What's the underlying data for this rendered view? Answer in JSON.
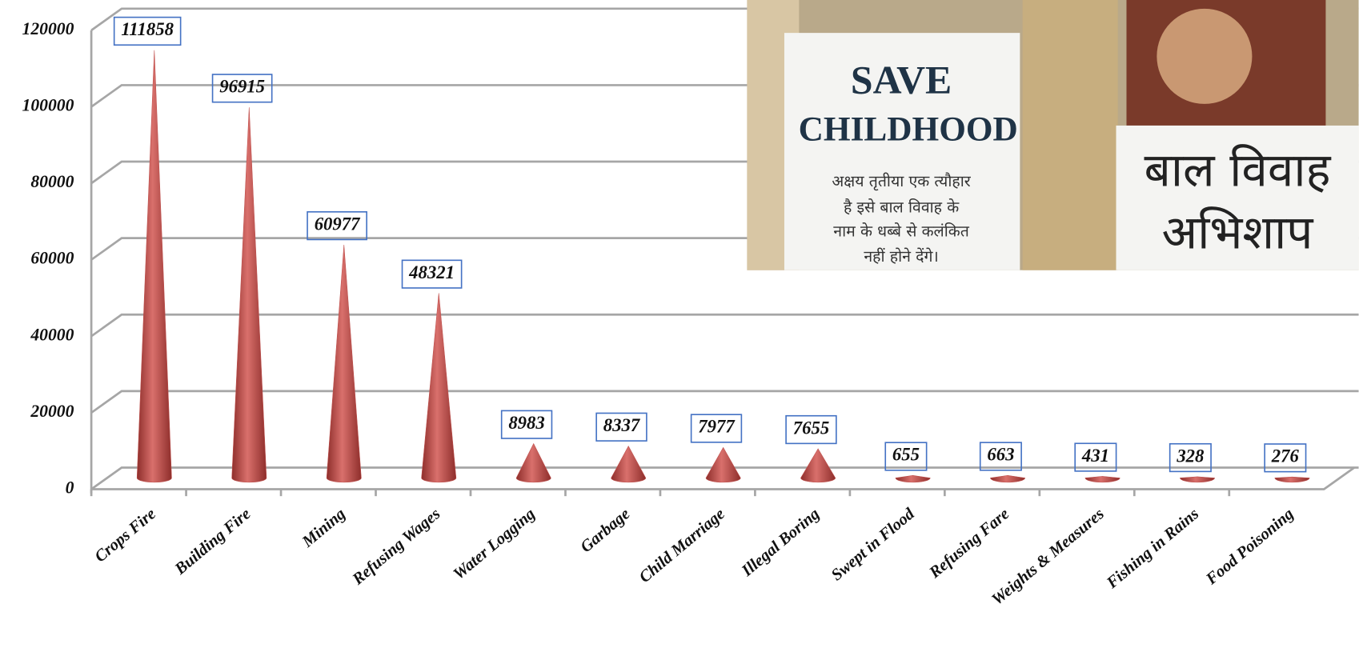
{
  "chart_data": {
    "type": "cone",
    "categories": [
      "Crops Fire",
      "Building Fire",
      "Mining",
      "Refusing Wages",
      "Water Logging",
      "Garbage",
      "Child Marriage",
      "Illegal Boring",
      "Swept in Flood",
      "Refusing Fare",
      "Weights & Measures",
      "Fishing in Rains",
      "Food Poisoning"
    ],
    "values": [
      111858,
      96915,
      60977,
      48321,
      8983,
      8337,
      7977,
      7655,
      655,
      663,
      431,
      328,
      276
    ],
    "color": "#c0504d",
    "ylim": [
      0,
      120000
    ],
    "yticks": [
      0,
      20000,
      40000,
      60000,
      80000,
      100000,
      120000
    ],
    "grid": true
  },
  "inset": {
    "sign_title": [
      "SAVE",
      "CHILDHOOD"
    ],
    "sign_text": [
      "अक्षय तृतीया एक त्यौहार",
      "है इसे बाल विवाह के",
      "नाम के धब्बे से कलंकित",
      "नहीं होने देंगे।"
    ],
    "caption": [
      "बाल विवाह",
      "अभिशाप"
    ]
  }
}
